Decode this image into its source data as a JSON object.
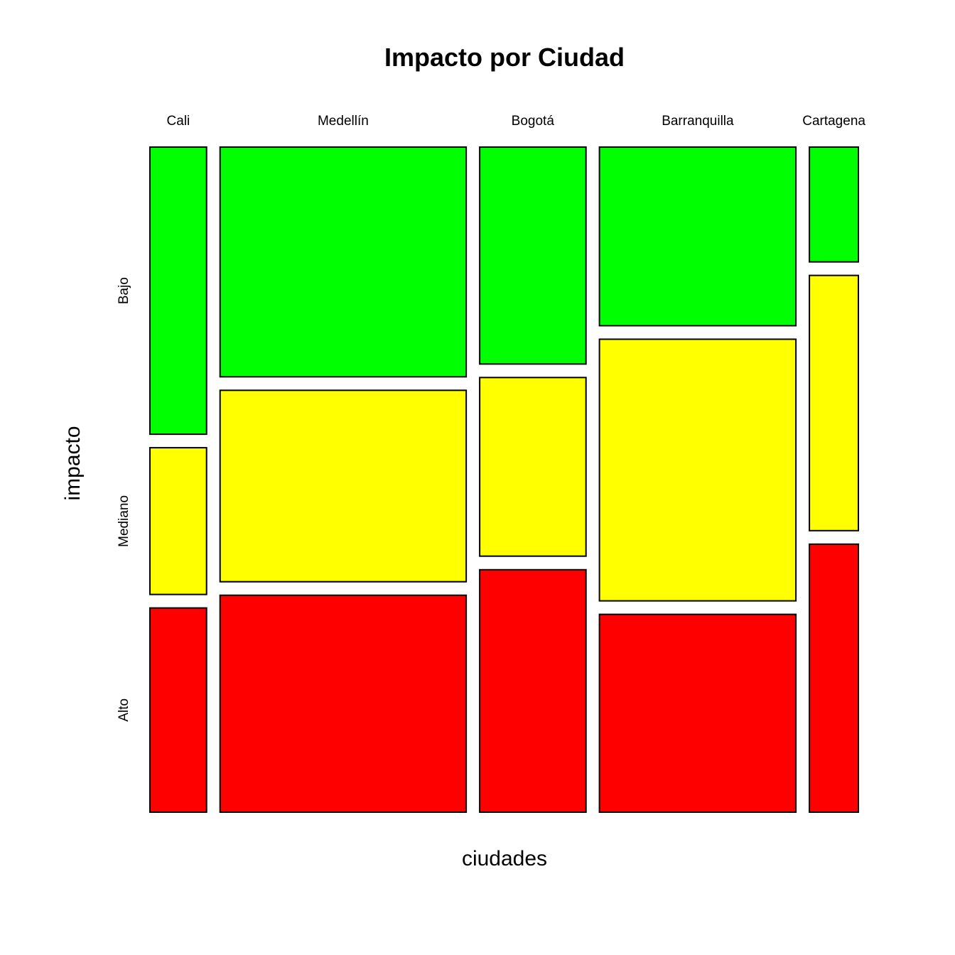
{
  "chart_data": {
    "type": "mosaic",
    "title": "Impacto por Ciudad",
    "xlabel": "ciudades",
    "ylabel": "impacto",
    "categories": [
      "Cali",
      "Medellín",
      "Bogotá",
      "Barranquilla",
      "Cartagena"
    ],
    "column_shares": [
      0.081,
      0.352,
      0.152,
      0.281,
      0.07
    ],
    "levels": [
      "Bajo",
      "Mediano",
      "Alto"
    ],
    "level_colors": {
      "Bajo": "#00ff00",
      "Mediano": "#ffff00",
      "Alto": "#ff0000"
    },
    "proportions": [
      {
        "category": "Cali",
        "Bajo": 0.45,
        "Mediano": 0.23,
        "Alto": 0.32
      },
      {
        "category": "Medellín",
        "Bajo": 0.36,
        "Mediano": 0.3,
        "Alto": 0.34
      },
      {
        "category": "Bogotá",
        "Bajo": 0.34,
        "Mediano": 0.28,
        "Alto": 0.38
      },
      {
        "category": "Barranquilla",
        "Bajo": 0.28,
        "Mediano": 0.41,
        "Alto": 0.31
      },
      {
        "category": "Cartagena",
        "Bajo": 0.18,
        "Mediano": 0.4,
        "Alto": 0.42
      }
    ],
    "grid": false,
    "legend": "none"
  }
}
